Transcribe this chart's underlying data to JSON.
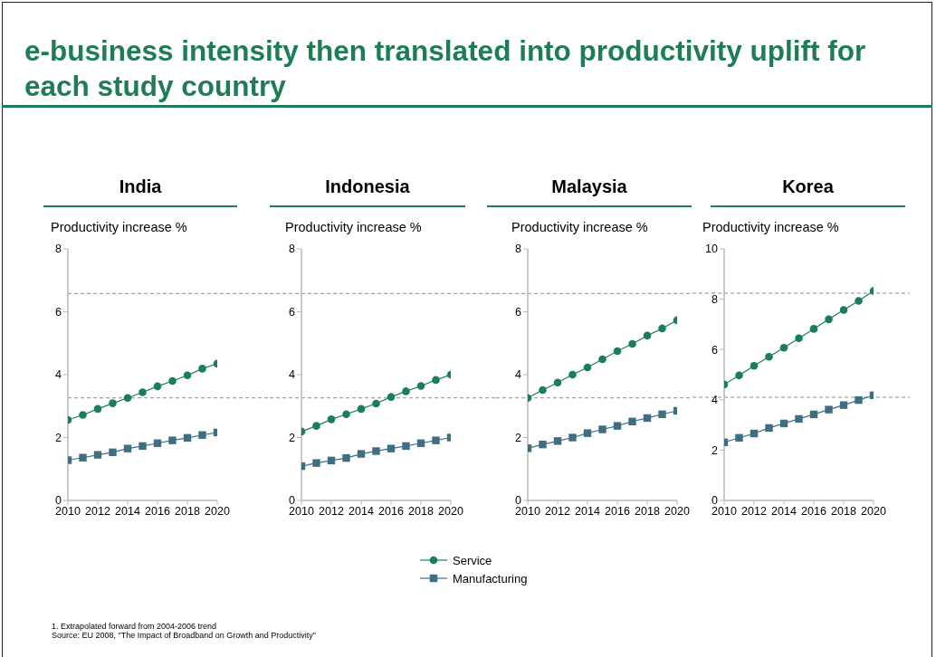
{
  "chart_data": [
    {
      "type": "line",
      "title": "India",
      "ylabel": "Productivity increase %",
      "x": [
        2010,
        2011,
        2012,
        2013,
        2014,
        2015,
        2016,
        2017,
        2018,
        2019,
        2020
      ],
      "xlim": [
        2010,
        2020
      ],
      "xticks": [
        2010,
        2012,
        2014,
        2016,
        2018,
        2020
      ],
      "ylim": [
        0,
        8
      ],
      "yticks": [
        0,
        2,
        4,
        6,
        8
      ],
      "series": [
        {
          "name": "Service",
          "color": "#1a7f56",
          "marker": "circle",
          "values": [
            2.56,
            2.72,
            2.91,
            3.09,
            3.26,
            3.44,
            3.63,
            3.8,
            3.98,
            4.19,
            4.35
          ]
        },
        {
          "name": "Manufacturing",
          "color": "#3e6e82",
          "marker": "square",
          "values": [
            1.28,
            1.36,
            1.45,
            1.53,
            1.65,
            1.73,
            1.82,
            1.91,
            1.99,
            2.08,
            2.16
          ]
        }
      ],
      "ref_lines": [
        {
          "axis": "y",
          "value": 6.58,
          "color": "#8c8c8c",
          "line_style": "dashed"
        },
        {
          "axis": "y",
          "value": 3.26,
          "color": "#8c8c8c",
          "line_style": "dashed"
        }
      ],
      "legend": "bottom",
      "annotations": [
        "e-business intensity then translated into productivity uplift for each study country",
        "1. Extrapolated forward from 2004-2006 trend",
        "Source: EU 2008, \"The Impact of Broadband on Growth and Productivity\""
      ]
    },
    {
      "type": "line",
      "title": "Indonesia",
      "ylabel": "Productivity increase %",
      "x": [
        2010,
        2011,
        2012,
        2013,
        2014,
        2015,
        2016,
        2017,
        2018,
        2019,
        2020
      ],
      "xlim": [
        2010,
        2020
      ],
      "xticks": [
        2010,
        2012,
        2014,
        2016,
        2018,
        2020
      ],
      "ylim": [
        0,
        8
      ],
      "yticks": [
        0,
        2,
        4,
        6,
        8
      ],
      "series": [
        {
          "name": "Service",
          "color": "#1a7f56",
          "marker": "circle",
          "values": [
            2.19,
            2.37,
            2.58,
            2.74,
            2.91,
            3.08,
            3.29,
            3.47,
            3.64,
            3.83,
            4.0
          ]
        },
        {
          "name": "Manufacturing",
          "color": "#3e6e82",
          "marker": "square",
          "values": [
            1.09,
            1.19,
            1.27,
            1.35,
            1.48,
            1.57,
            1.65,
            1.73,
            1.82,
            1.91,
            2.0
          ]
        }
      ],
      "ref_lines": [
        {
          "axis": "y",
          "value": 6.58,
          "color": "#8c8c8c",
          "line_style": "dashed"
        },
        {
          "axis": "y",
          "value": 3.26,
          "color": "#8c8c8c",
          "line_style": "dashed"
        }
      ]
    },
    {
      "type": "line",
      "title": "Malaysia",
      "ylabel": "Productivity increase %",
      "x": [
        2010,
        2011,
        2012,
        2013,
        2014,
        2015,
        2016,
        2017,
        2018,
        2019,
        2020
      ],
      "xlim": [
        2010,
        2020
      ],
      "xticks": [
        2010,
        2012,
        2014,
        2016,
        2018,
        2020
      ],
      "ylim": [
        0,
        8
      ],
      "yticks": [
        0,
        2,
        4,
        6,
        8
      ],
      "series": [
        {
          "name": "Service",
          "color": "#1a7f56",
          "marker": "circle",
          "values": [
            3.26,
            3.51,
            3.75,
            4.0,
            4.23,
            4.49,
            4.75,
            4.98,
            5.24,
            5.47,
            5.73
          ]
        },
        {
          "name": "Manufacturing",
          "color": "#3e6e82",
          "marker": "square",
          "values": [
            1.66,
            1.78,
            1.89,
            2.0,
            2.14,
            2.26,
            2.37,
            2.51,
            2.62,
            2.74,
            2.85
          ]
        }
      ],
      "ref_lines": [
        {
          "axis": "y",
          "value": 6.58,
          "color": "#8c8c8c",
          "line_style": "dashed"
        },
        {
          "axis": "y",
          "value": 3.26,
          "color": "#8c8c8c",
          "line_style": "dashed"
        }
      ]
    },
    {
      "type": "line",
      "title": "Korea",
      "ylabel": "Productivity increase %",
      "x": [
        2010,
        2011,
        2012,
        2013,
        2014,
        2015,
        2016,
        2017,
        2018,
        2019,
        2020
      ],
      "xlim": [
        2010,
        2020
      ],
      "xticks": [
        2010,
        2012,
        2014,
        2016,
        2018,
        2020
      ],
      "ylim": [
        0,
        10
      ],
      "yticks": [
        0,
        2,
        4,
        6,
        8,
        10
      ],
      "series": [
        {
          "name": "Service",
          "color": "#1a7f56",
          "marker": "circle",
          "values": [
            4.61,
            4.97,
            5.35,
            5.71,
            6.07,
            6.45,
            6.82,
            7.2,
            7.57,
            7.93,
            8.33
          ]
        },
        {
          "name": "Manufacturing",
          "color": "#3e6e82",
          "marker": "square",
          "values": [
            2.31,
            2.49,
            2.66,
            2.88,
            3.06,
            3.24,
            3.42,
            3.61,
            3.79,
            3.99,
            4.18
          ]
        }
      ],
      "ref_lines": [
        {
          "axis": "y",
          "value": 8.24,
          "color": "#8c8c8c",
          "line_style": "dashed"
        },
        {
          "axis": "y",
          "value": 4.1,
          "color": "#8c8c8c",
          "line_style": "dashed"
        }
      ]
    }
  ]
}
